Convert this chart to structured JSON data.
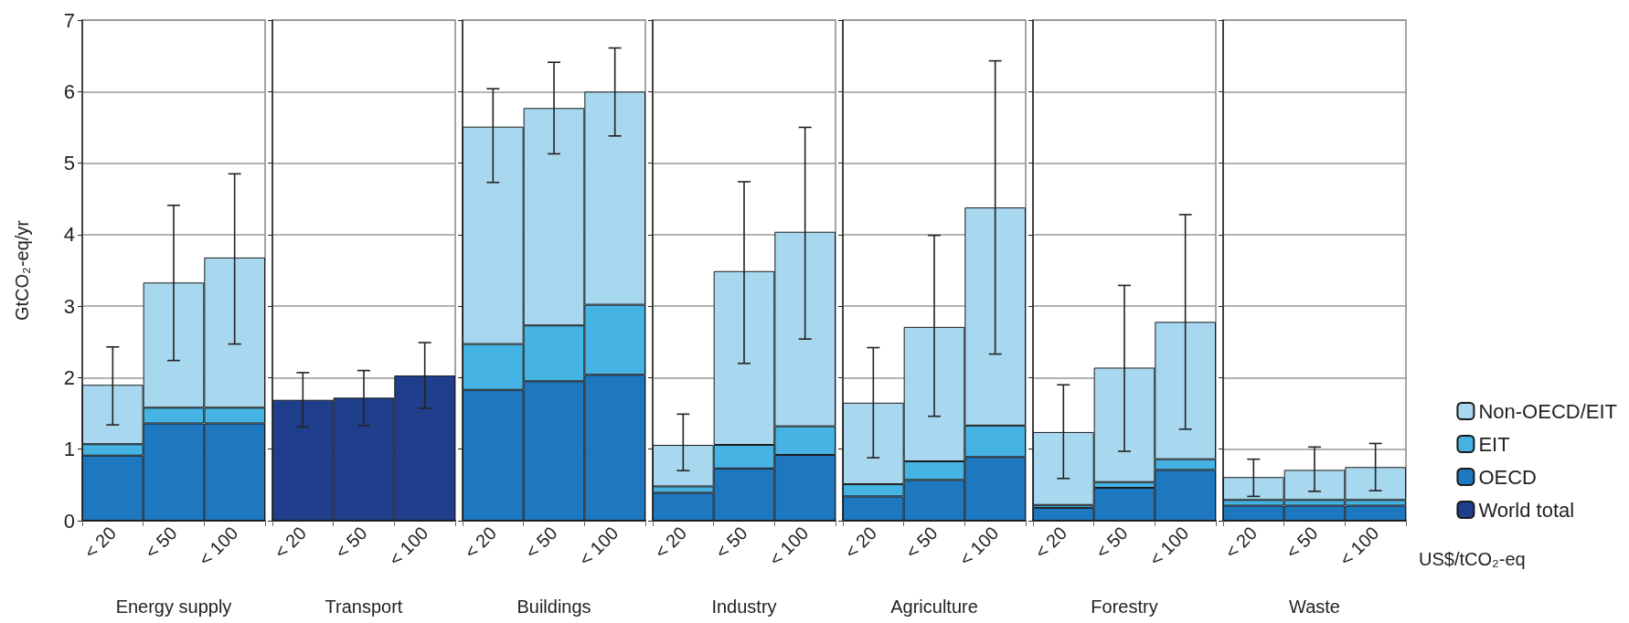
{
  "chart_data": [
    {
      "type": "bar",
      "stacked": true,
      "xlabel": "Energy supply",
      "ylabel": "GtCO₂-eq/yr",
      "categories": [
        "< 20",
        "< 50",
        "< 100"
      ],
      "ylim": [
        0,
        7
      ],
      "yticks": [
        0,
        1,
        2,
        3,
        4,
        5,
        6,
        7
      ],
      "grid": "y",
      "legend": false,
      "series": [
        {
          "color": "#1e78c0",
          "values": [
            0.91,
            1.36,
            1.36
          ]
        },
        {
          "color": "#45b3e3",
          "values": [
            0.16,
            0.22,
            0.22
          ]
        },
        {
          "color": "#a8d8ef",
          "values": [
            0.83,
            1.75,
            2.1
          ],
          "errors": [
            [
              1.34,
              2.43
            ],
            [
              2.24,
              4.41
            ],
            [
              2.47,
              4.85
            ]
          ]
        }
      ]
    },
    {
      "type": "bar",
      "stacked": true,
      "xlabel": "Transport",
      "categories": [
        "< 20",
        "< 50",
        "< 100"
      ],
      "ylim": [
        0,
        7
      ],
      "yticks": [
        0,
        1,
        2,
        3,
        4,
        5,
        6,
        7
      ],
      "grid": "y",
      "legend": false,
      "tick_labels": "x",
      "series": [
        {
          "color": "#1f3f8c",
          "values": [
            1.69,
            1.72,
            2.03
          ],
          "errors": [
            [
              1.31,
              2.07
            ],
            [
              1.33,
              2.1
            ],
            [
              1.57,
              2.49
            ]
          ]
        }
      ]
    },
    {
      "type": "bar",
      "stacked": true,
      "xlabel": "Buildings",
      "categories": [
        "< 20",
        "< 50",
        "< 100"
      ],
      "ylim": [
        0,
        7
      ],
      "yticks": [
        0,
        1,
        2,
        3,
        4,
        5,
        6,
        7
      ],
      "grid": "y",
      "legend": false,
      "tick_labels": "x",
      "series": [
        {
          "color": "#1e78c0",
          "values": [
            1.83,
            1.95,
            2.04
          ]
        },
        {
          "color": "#45b3e3",
          "values": [
            0.64,
            0.78,
            0.98
          ]
        },
        {
          "color": "#a8d8ef",
          "values": [
            3.04,
            3.04,
            2.98
          ],
          "errors": [
            [
              4.73,
              6.04
            ],
            [
              5.13,
              6.41
            ],
            [
              5.38,
              6.61
            ]
          ]
        }
      ]
    },
    {
      "type": "bar",
      "stacked": true,
      "xlabel": "Industry",
      "categories": [
        "< 20",
        "< 50",
        "< 100"
      ],
      "ylim": [
        0,
        7
      ],
      "yticks": [
        0,
        1,
        2,
        3,
        4,
        5,
        6,
        7
      ],
      "grid": "y",
      "legend": false,
      "tick_labels": "x",
      "series": [
        {
          "color": "#1e78c0",
          "values": [
            0.39,
            0.73,
            0.92
          ]
        },
        {
          "color": "#45b3e3",
          "values": [
            0.09,
            0.33,
            0.4
          ]
        },
        {
          "color": "#a8d8ef",
          "values": [
            0.58,
            2.43,
            2.72
          ],
          "errors": [
            [
              0.7,
              1.49
            ],
            [
              2.2,
              4.74
            ],
            [
              2.54,
              5.5
            ]
          ]
        }
      ]
    },
    {
      "type": "bar",
      "stacked": true,
      "xlabel": "Agriculture",
      "categories": [
        "< 20",
        "< 50",
        "< 100"
      ],
      "ylim": [
        0,
        7
      ],
      "yticks": [
        0,
        1,
        2,
        3,
        4,
        5,
        6,
        7
      ],
      "grid": "y",
      "legend": false,
      "tick_labels": "x",
      "series": [
        {
          "color": "#1e78c0",
          "values": [
            0.34,
            0.57,
            0.89
          ]
        },
        {
          "color": "#45b3e3",
          "values": [
            0.17,
            0.26,
            0.44
          ]
        },
        {
          "color": "#a8d8ef",
          "values": [
            1.14,
            1.88,
            3.05
          ],
          "errors": [
            [
              0.88,
              2.42
            ],
            [
              1.46,
              3.99
            ],
            [
              2.33,
              6.43
            ]
          ]
        }
      ]
    },
    {
      "type": "bar",
      "stacked": true,
      "xlabel": "Forestry",
      "categories": [
        "< 20",
        "< 50",
        "< 100"
      ],
      "ylim": [
        0,
        7
      ],
      "yticks": [
        0,
        1,
        2,
        3,
        4,
        5,
        6,
        7
      ],
      "grid": "y",
      "legend": false,
      "tick_labels": "x",
      "series": [
        {
          "color": "#1e78c0",
          "values": [
            0.18,
            0.46,
            0.71
          ]
        },
        {
          "color": "#45b3e3",
          "values": [
            0.04,
            0.08,
            0.15
          ]
        },
        {
          "color": "#a8d8ef",
          "values": [
            1.02,
            1.6,
            1.92
          ],
          "errors": [
            [
              0.59,
              1.9
            ],
            [
              0.97,
              3.29
            ],
            [
              1.28,
              4.28
            ]
          ]
        }
      ]
    },
    {
      "type": "bar",
      "stacked": true,
      "xlabel": "Waste",
      "categories": [
        "< 20",
        "< 50",
        "< 100"
      ],
      "ylim": [
        0,
        7
      ],
      "yticks": [
        0,
        1,
        2,
        3,
        4,
        5,
        6,
        7
      ],
      "grid": "y",
      "legend": "right",
      "tick_labels": "x",
      "annotations": [
        "US$/tCO₂-eq"
      ],
      "series": [
        {
          "name": "World total",
          "color": "#1f3f8c",
          "values": [
            null,
            null,
            null
          ]
        },
        {
          "name": "OECD",
          "color": "#1e78c0",
          "values": [
            0.21,
            0.21,
            0.21
          ]
        },
        {
          "name": "EIT",
          "color": "#45b3e3",
          "values": [
            0.08,
            0.08,
            0.08
          ]
        },
        {
          "name": "Non-OECD/EIT",
          "color": "#a8d8ef",
          "values": [
            0.32,
            0.42,
            0.46
          ],
          "errors": [
            [
              0.34,
              0.86
            ],
            [
              0.41,
              1.03
            ],
            [
              0.42,
              1.08
            ]
          ]
        }
      ]
    }
  ]
}
